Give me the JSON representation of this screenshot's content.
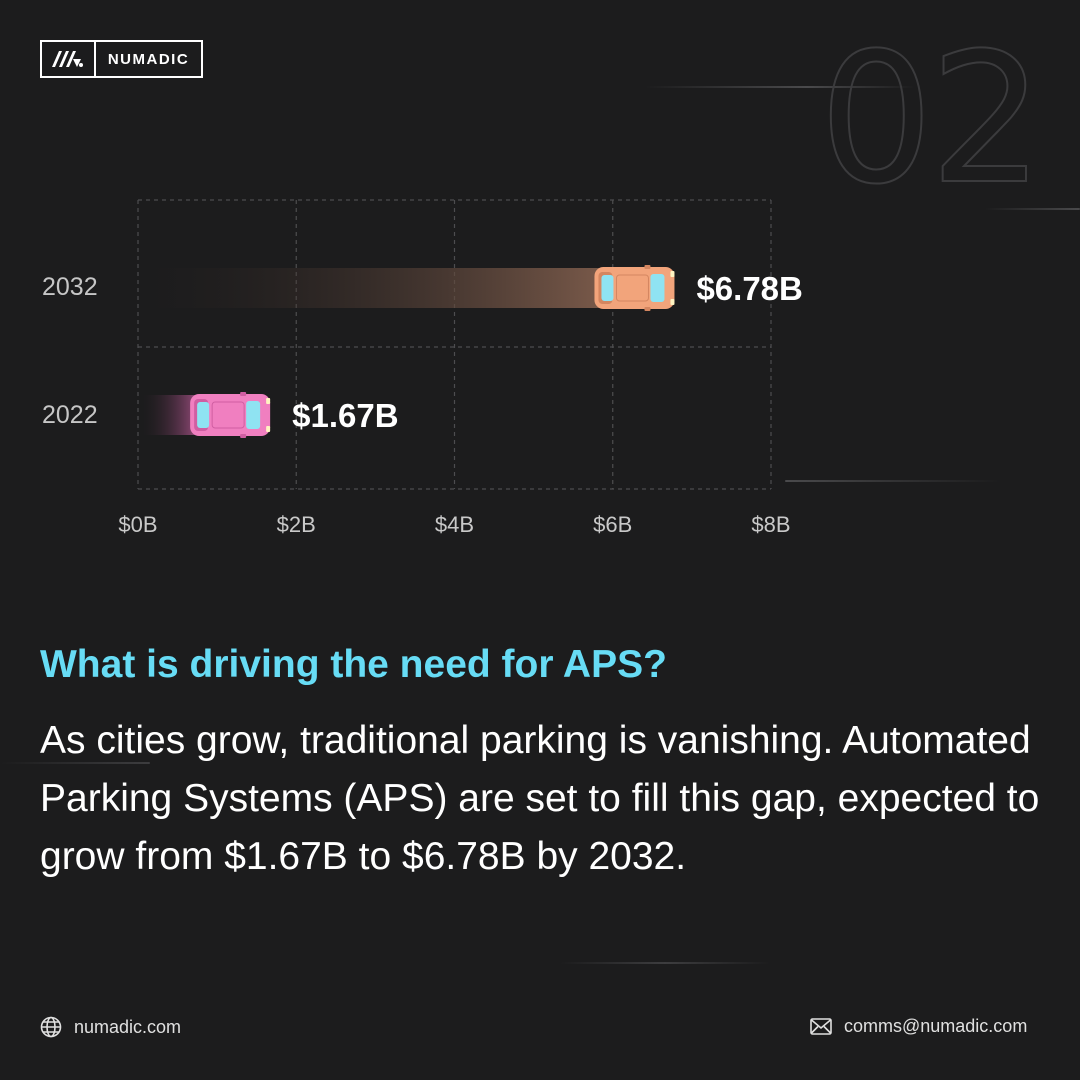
{
  "brand": {
    "name": "NUMADIC",
    "logo_icon": "numadic-logo-icon"
  },
  "page_number": "02",
  "chart_data": {
    "type": "bar",
    "orientation": "horizontal",
    "categories": [
      "2032",
      "2022"
    ],
    "values": [
      6.78,
      1.67
    ],
    "value_labels": [
      "$6.78B",
      "$1.67B"
    ],
    "x_ticks": [
      0,
      2,
      4,
      6,
      8
    ],
    "x_tick_labels": [
      "$0B",
      "$2B",
      "$4B",
      "$6B",
      "$8B"
    ],
    "xlim": [
      0,
      8
    ],
    "grid": true,
    "bar_colors": [
      "#f2a47b",
      "#f07fc0"
    ],
    "title": "",
    "xlabel": "",
    "ylabel": ""
  },
  "content": {
    "heading": "What is driving the need for APS?",
    "body": "As cities grow, traditional parking is vanishing. Automated Parking Systems (APS) are set to fill this gap, expected to grow from $1.67B to $6.78B by 2032."
  },
  "footer": {
    "website": "numadic.com",
    "email": "comms@numadic.com",
    "website_icon": "globe-icon",
    "email_icon": "mail-icon"
  },
  "colors": {
    "background": "#1c1c1d",
    "accent": "#67dcf5",
    "text": "#ffffff"
  }
}
